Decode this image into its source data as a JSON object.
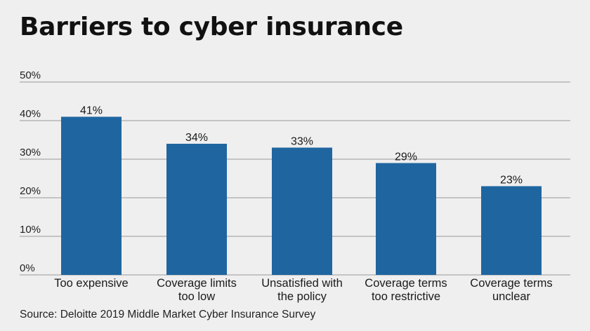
{
  "title": "Barriers to cyber insurance",
  "source": "Source: Deloitte 2019 Middle Market Cyber Insurance Survey",
  "colors": {
    "bar": "#1f66a1",
    "grid": "#9a9a9a",
    "background": "#efefef"
  },
  "chart_data": {
    "type": "bar",
    "title": "Barriers to cyber insurance",
    "categories": [
      [
        "Too expensive"
      ],
      [
        "Coverage limits",
        "too low"
      ],
      [
        "Unsatisfied with",
        "the policy"
      ],
      [
        "Coverage terms",
        "too restrictive"
      ],
      [
        "Coverage terms",
        "unclear"
      ]
    ],
    "values": [
      41,
      34,
      33,
      29,
      23
    ],
    "value_labels": [
      "41%",
      "34%",
      "33%",
      "29%",
      "23%"
    ],
    "yticks": [
      "0%",
      "10%",
      "20%",
      "30%",
      "40%",
      "50%"
    ],
    "ylim": [
      0,
      50
    ],
    "grid": true,
    "legend": "none"
  }
}
